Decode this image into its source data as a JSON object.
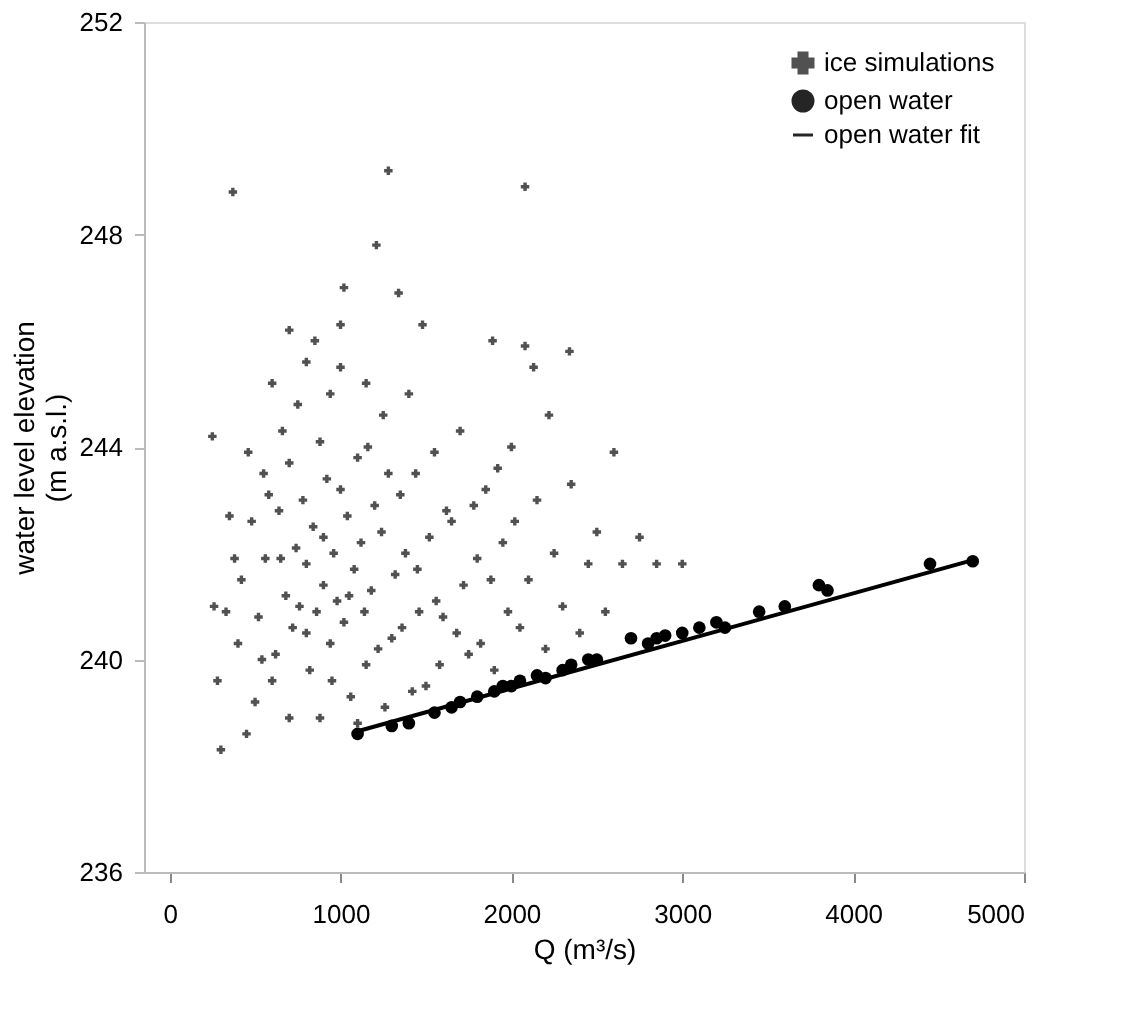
{
  "chart_data": {
    "type": "scatter",
    "xlabel": "Q (m³/s)",
    "ylabel": "water level elevation\n(m a.s.l.)",
    "xlim": [
      -150,
      5000
    ],
    "xticks": [
      0,
      1000,
      2000,
      3000,
      4000,
      5000
    ],
    "ylim": [
      236,
      252
    ],
    "yticks": [
      236,
      240,
      244,
      248,
      252
    ],
    "grid": false,
    "legend": "top right",
    "series": [
      {
        "name": "ice simulations",
        "type": "scatter",
        "marker": "cross",
        "color": "#333333",
        "x": [
          370,
          1280,
          2080,
          1210,
          1020,
          1340,
          2340,
          2600,
          2080,
          2130,
          1480,
          2220,
          1890,
          250,
          260,
          280,
          300,
          350,
          400,
          450,
          500,
          550,
          600,
          650,
          700,
          750,
          800,
          850,
          900,
          950,
          1000,
          1050,
          1100,
          1150,
          1200,
          1250,
          1300,
          1350,
          1400,
          1450,
          1500,
          1550,
          1600,
          1650,
          1700,
          1750,
          1800,
          1850,
          1900,
          1950,
          2000,
          2050,
          2100,
          2150,
          2200,
          2250,
          2300,
          2350,
          2400,
          2450,
          2500,
          2550,
          2650,
          2850,
          3000,
          2750,
          420,
          480,
          520,
          560,
          580,
          620,
          640,
          680,
          700,
          720,
          740,
          760,
          780,
          800,
          820,
          840,
          860,
          880,
          900,
          920,
          940,
          960,
          980,
          1000,
          1020,
          1040,
          1060,
          1080,
          1120,
          1140,
          1160,
          1180,
          1220,
          1240,
          1260,
          1280,
          1320,
          1360,
          1380,
          1420,
          1440,
          1460,
          1520,
          1560,
          1580,
          1620,
          1680,
          1720,
          1780,
          1820,
          1880,
          1920,
          1980,
          2020,
          600,
          540,
          460,
          380,
          330,
          660,
          880,
          1100,
          940,
          800,
          1150,
          700,
          1000
        ],
        "values": [
          248.8,
          249.2,
          248.9,
          247.8,
          247.0,
          246.9,
          245.8,
          243.9,
          245.9,
          245.5,
          246.3,
          244.6,
          246.0,
          244.2,
          241.0,
          239.6,
          238.3,
          242.7,
          240.3,
          238.6,
          239.2,
          243.5,
          245.2,
          241.9,
          238.9,
          244.8,
          240.5,
          246.0,
          242.3,
          239.6,
          245.5,
          241.2,
          243.8,
          239.9,
          242.9,
          244.6,
          240.4,
          243.1,
          245.0,
          241.7,
          239.5,
          243.9,
          240.8,
          242.6,
          244.3,
          240.1,
          241.9,
          243.2,
          239.8,
          242.2,
          244.0,
          240.6,
          241.5,
          243.0,
          240.2,
          242.0,
          241.0,
          243.3,
          240.5,
          241.8,
          242.4,
          240.9,
          241.8,
          241.8,
          241.8,
          242.3,
          241.5,
          242.6,
          240.8,
          241.9,
          243.1,
          240.1,
          242.8,
          241.2,
          243.7,
          240.6,
          242.1,
          241.0,
          243.0,
          241.8,
          239.8,
          242.5,
          240.9,
          244.1,
          241.4,
          243.4,
          240.3,
          242.0,
          241.1,
          243.2,
          240.7,
          242.7,
          239.3,
          241.7,
          242.2,
          240.9,
          244.0,
          241.3,
          240.2,
          242.4,
          239.1,
          243.5,
          241.6,
          240.6,
          242.0,
          239.4,
          243.5,
          240.9,
          242.3,
          241.1,
          239.9,
          242.8,
          240.5,
          241.4,
          242.9,
          240.3,
          241.5,
          243.6,
          240.9,
          242.6,
          239.6,
          240.0,
          243.9,
          241.9,
          240.9,
          244.3,
          238.9,
          238.8,
          245.0,
          245.6,
          245.2,
          246.2,
          246.3
        ]
      },
      {
        "name": "open water",
        "type": "scatter",
        "marker": "circle",
        "color": "#000000",
        "x": [
          1100,
          1300,
          1400,
          1550,
          1650,
          1700,
          1800,
          1850,
          1900,
          1950,
          2000,
          2050,
          2150,
          2200,
          2300,
          2350,
          2450,
          2500,
          2700,
          2800,
          2850,
          2900,
          3000,
          3100,
          3200,
          3250,
          3450,
          3600,
          3800,
          3850,
          4450,
          4700
        ],
        "values": [
          238.6,
          238.75,
          238.8,
          239.0,
          239.1,
          239.2,
          239.3,
          null,
          239.4,
          239.5,
          239.5,
          239.6,
          239.7,
          239.65,
          239.8,
          239.9,
          240.0,
          240.0,
          240.4,
          240.3,
          240.4,
          240.45,
          240.5,
          240.6,
          240.7,
          240.6,
          240.9,
          241.0,
          241.4,
          241.3,
          241.8,
          241.85
        ]
      },
      {
        "name": "open water fit",
        "type": "line",
        "marker": "none",
        "line_style": "solid",
        "color": "#000000",
        "x": [
          1100,
          4700
        ],
        "values": [
          238.65,
          241.87
        ]
      }
    ]
  }
}
